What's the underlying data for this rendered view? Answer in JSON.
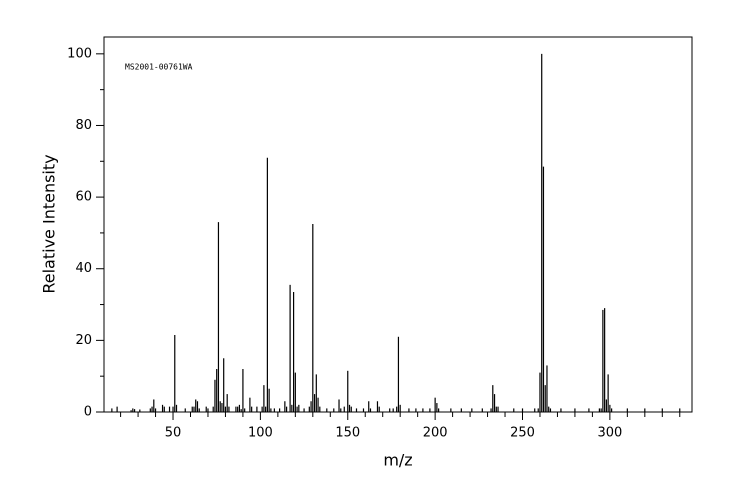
{
  "chart_data": {
    "type": "stick",
    "title": "MS2001-00761WA",
    "x_label": "m/z",
    "y_label": "Relative Intensity",
    "color": "#000000",
    "x": [
      15,
      18,
      26,
      27,
      28,
      31,
      37,
      38,
      39,
      40,
      44,
      45,
      48,
      50,
      51,
      52,
      57,
      61,
      62,
      63,
      64,
      65,
      69,
      70,
      73,
      74,
      75,
      76,
      77,
      78,
      79,
      80,
      81,
      82,
      86,
      87,
      88,
      89,
      90,
      91,
      94,
      95,
      98,
      101,
      102,
      103,
      104,
      105,
      106,
      108,
      111,
      114,
      115,
      117,
      118,
      119,
      120,
      121,
      122,
      125,
      128,
      129,
      130,
      131,
      132,
      133,
      134,
      138,
      142,
      145,
      146,
      148,
      150,
      151,
      152,
      155,
      159,
      162,
      163,
      167,
      168,
      174,
      176,
      178,
      179,
      180,
      185,
      189,
      193,
      197,
      200,
      201,
      202,
      209,
      215,
      221,
      227,
      232,
      233,
      234,
      235,
      236,
      245,
      250,
      257,
      259,
      260,
      261,
      262,
      263,
      264,
      265,
      266,
      272,
      280,
      288,
      294,
      295,
      296,
      297,
      298,
      299,
      300,
      301,
      310,
      320,
      330,
      340
    ],
    "values": [
      1,
      1.5,
      0.5,
      1,
      0.8,
      0.7,
      1,
      1.5,
      3.5,
      1,
      2,
      1.5,
      1.5,
      1.5,
      21.5,
      2,
      1,
      1.5,
      1.5,
      3.5,
      3,
      1,
      1.5,
      1,
      1.5,
      9,
      12,
      53,
      3,
      2.5,
      15,
      1.5,
      5,
      1.5,
      1.5,
      1.5,
      2,
      0.8,
      12,
      1,
      4,
      1.5,
      1.5,
      1.5,
      7.5,
      1.5,
      71,
      6.5,
      1,
      1,
      1,
      3,
      1.5,
      35.5,
      2,
      33.5,
      11,
      1.5,
      2,
      1,
      1.5,
      3,
      52.5,
      5,
      10.5,
      4,
      1.5,
      1,
      1,
      3.5,
      1,
      1.5,
      11.5,
      2,
      1.5,
      1,
      1,
      3,
      1,
      3,
      1.5,
      1,
      1,
      1.5,
      21,
      2,
      1,
      1,
      1,
      1,
      4,
      2.5,
      1,
      1,
      1,
      1,
      1,
      1,
      7.5,
      5,
      1.5,
      1.5,
      1,
      1,
      1,
      1,
      11,
      100,
      68.5,
      7.5,
      13,
      1.5,
      1,
      1,
      1,
      1,
      1,
      1,
      28.5,
      29,
      3.5,
      10.5,
      2,
      1,
      1,
      1,
      1,
      1
    ],
    "xlim": [
      10.5,
      347
    ],
    "ylim": [
      0,
      104.7
    ],
    "xticks": [
      50,
      100,
      150,
      200,
      250,
      300
    ],
    "yticks": [
      0,
      20,
      40,
      60,
      80,
      100
    ],
    "xminorticks": [
      20,
      30,
      40,
      60,
      70,
      80,
      90,
      110,
      120,
      130,
      140,
      160,
      170,
      180,
      190,
      210,
      220,
      230,
      240,
      260,
      270,
      280,
      290,
      310,
      320,
      330,
      340
    ],
    "yminorticks": [
      10,
      30,
      50,
      70,
      90
    ]
  }
}
